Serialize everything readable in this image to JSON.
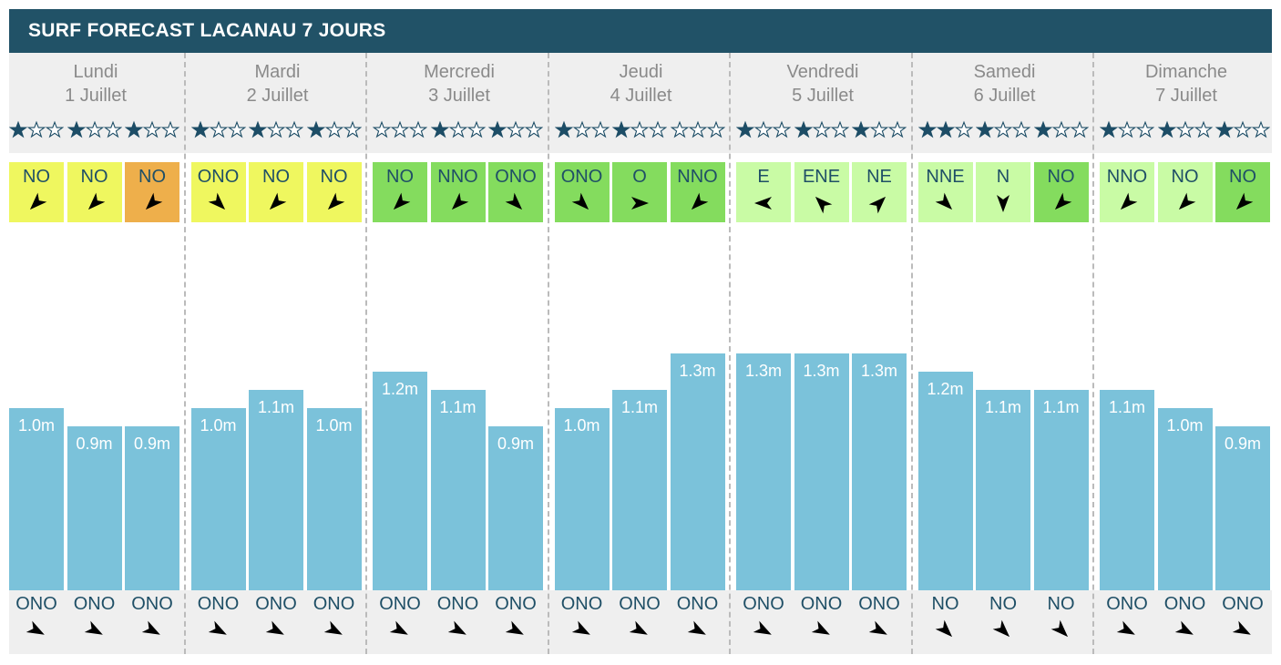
{
  "header": {
    "title": "SURF FORECAST LACANAU 7 JOURS"
  },
  "colors": {
    "header_bg": "#215267",
    "band_bg": "#efefef",
    "bar": "#7bc2da",
    "star": "#1d4d66",
    "wind_quality": {
      "orange": "#eeaf4b",
      "yellow": "#eff75f",
      "green": "#84dc5e",
      "light_green": "#c9fba5"
    }
  },
  "chart_data": {
    "type": "bar",
    "unit": "m",
    "days": [
      {
        "name": "Lundi",
        "date": "1 Juillet",
        "stars": [
          1,
          1,
          1
        ],
        "wind": [
          {
            "dir": "NO",
            "quality": "yellow",
            "arrow": "arrow-down-left-icon"
          },
          {
            "dir": "NO",
            "quality": "yellow",
            "arrow": "arrow-down-left-icon"
          },
          {
            "dir": "NO",
            "quality": "orange",
            "arrow": "arrow-down-left-icon"
          }
        ],
        "heights": [
          1.0,
          0.9,
          0.9
        ],
        "labels": [
          "1.0m",
          "0.9m",
          "0.9m"
        ],
        "swell": [
          "ONO",
          "ONO",
          "ONO"
        ]
      },
      {
        "name": "Mardi",
        "date": "2 Juillet",
        "stars": [
          1,
          1,
          1
        ],
        "wind": [
          {
            "dir": "ONO",
            "quality": "yellow",
            "arrow": "arrow-down-right-icon"
          },
          {
            "dir": "NO",
            "quality": "yellow",
            "arrow": "arrow-down-left-icon"
          },
          {
            "dir": "NO",
            "quality": "yellow",
            "arrow": "arrow-down-left-icon"
          }
        ],
        "heights": [
          1.0,
          1.1,
          1.0
        ],
        "labels": [
          "1.0m",
          "1.1m",
          "1.0m"
        ],
        "swell": [
          "ONO",
          "ONO",
          "ONO"
        ]
      },
      {
        "name": "Mercredi",
        "date": "3 Juillet",
        "stars": [
          0,
          1,
          1
        ],
        "wind": [
          {
            "dir": "NO",
            "quality": "green",
            "arrow": "arrow-down-left-icon"
          },
          {
            "dir": "NNO",
            "quality": "green",
            "arrow": "arrow-down-left-icon"
          },
          {
            "dir": "ONO",
            "quality": "green",
            "arrow": "arrow-down-right-icon"
          }
        ],
        "heights": [
          1.2,
          1.1,
          0.9
        ],
        "labels": [
          "1.2m",
          "1.1m",
          "0.9m"
        ],
        "swell": [
          "ONO",
          "ONO",
          "ONO"
        ]
      },
      {
        "name": "Jeudi",
        "date": "4 Juillet",
        "stars": [
          1,
          1,
          0
        ],
        "wind": [
          {
            "dir": "ONO",
            "quality": "green",
            "arrow": "arrow-down-right-icon"
          },
          {
            "dir": "O",
            "quality": "green",
            "arrow": "arrow-right-icon"
          },
          {
            "dir": "NNO",
            "quality": "green",
            "arrow": "arrow-down-left-icon"
          }
        ],
        "heights": [
          1.0,
          1.1,
          1.3
        ],
        "labels": [
          "1.0m",
          "1.1m",
          "1.3m"
        ],
        "swell": [
          "ONO",
          "ONO",
          "ONO"
        ]
      },
      {
        "name": "Vendredi",
        "date": "5 Juillet",
        "stars": [
          1,
          1,
          1
        ],
        "wind": [
          {
            "dir": "E",
            "quality": "light_green",
            "arrow": "arrow-left-icon"
          },
          {
            "dir": "ENE",
            "quality": "light_green",
            "arrow": "arrow-up-left-icon"
          },
          {
            "dir": "NE",
            "quality": "light_green",
            "arrow": "arrow-up-right-icon"
          }
        ],
        "heights": [
          1.3,
          1.3,
          1.3
        ],
        "labels": [
          "1.3m",
          "1.3m",
          "1.3m"
        ],
        "swell": [
          "ONO",
          "ONO",
          "ONO"
        ]
      },
      {
        "name": "Samedi",
        "date": "6 Juillet",
        "stars": [
          2,
          1,
          1
        ],
        "wind": [
          {
            "dir": "NNE",
            "quality": "light_green",
            "arrow": "arrow-down-right-icon"
          },
          {
            "dir": "N",
            "quality": "light_green",
            "arrow": "arrow-down-icon"
          },
          {
            "dir": "NO",
            "quality": "green",
            "arrow": "arrow-down-left-icon"
          }
        ],
        "heights": [
          1.2,
          1.1,
          1.1
        ],
        "labels": [
          "1.2m",
          "1.1m",
          "1.1m"
        ],
        "swell": [
          "NO",
          "NO",
          "NO"
        ]
      },
      {
        "name": "Dimanche",
        "date": "7 Juillet",
        "stars": [
          1,
          1,
          1
        ],
        "wind": [
          {
            "dir": "NNO",
            "quality": "light_green",
            "arrow": "arrow-down-left-icon"
          },
          {
            "dir": "NO",
            "quality": "light_green",
            "arrow": "arrow-down-left-icon"
          },
          {
            "dir": "NO",
            "quality": "green",
            "arrow": "arrow-down-left-icon"
          }
        ],
        "heights": [
          1.1,
          1.0,
          0.9
        ],
        "labels": [
          "1.1m",
          "1.0m",
          "0.9m"
        ],
        "swell": [
          "ONO",
          "ONO",
          "ONO"
        ]
      }
    ]
  }
}
